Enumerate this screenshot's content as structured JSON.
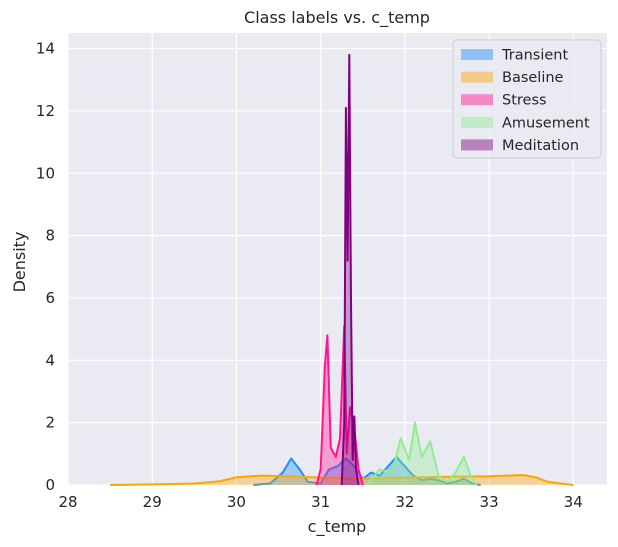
{
  "chart_data": {
    "type": "area",
    "title": "Class labels vs. c_temp",
    "xlabel": "c_temp",
    "ylabel": "Density",
    "xlim": [
      28,
      34.4
    ],
    "ylim": [
      0,
      14.5
    ],
    "xticks": [
      28,
      29,
      30,
      31,
      32,
      33,
      34
    ],
    "yticks": [
      0,
      2,
      4,
      6,
      8,
      10,
      12,
      14
    ],
    "grid": true,
    "legend_position": "top-right",
    "colors": {
      "background": "#eaeaf2",
      "grid": "#ffffff",
      "Transient": "#1e90ff",
      "Baseline": "#ffa500",
      "Stress": "#ff1493",
      "Amusement": "#90ee90",
      "Meditation": "#800080"
    },
    "series": [
      {
        "name": "Transient",
        "x": [
          30.2,
          30.4,
          30.55,
          30.65,
          30.75,
          30.85,
          31.0,
          31.1,
          31.2,
          31.3,
          31.4,
          31.5,
          31.6,
          31.7,
          31.8,
          31.9,
          32.0,
          32.1,
          32.2,
          32.3,
          32.4,
          32.5,
          32.6,
          32.7,
          32.8,
          32.9
        ],
        "y": [
          0.0,
          0.05,
          0.4,
          0.85,
          0.5,
          0.1,
          0.05,
          0.5,
          0.6,
          0.85,
          0.6,
          0.2,
          0.4,
          0.3,
          0.6,
          0.9,
          0.6,
          0.3,
          0.15,
          0.2,
          0.15,
          0.05,
          0.1,
          0.2,
          0.05,
          0.0
        ]
      },
      {
        "name": "Baseline",
        "x": [
          28.5,
          29.0,
          29.5,
          29.8,
          30.0,
          30.3,
          30.6,
          30.9,
          31.2,
          31.5,
          31.8,
          32.2,
          32.6,
          33.0,
          33.2,
          33.4,
          33.55,
          33.7,
          34.0
        ],
        "y": [
          0.0,
          0.02,
          0.05,
          0.12,
          0.25,
          0.3,
          0.28,
          0.25,
          0.22,
          0.2,
          0.22,
          0.25,
          0.27,
          0.28,
          0.3,
          0.32,
          0.25,
          0.1,
          0.0
        ]
      },
      {
        "name": "Stress",
        "x": [
          30.95,
          31.0,
          31.05,
          31.08,
          31.12,
          31.18,
          31.23,
          31.28,
          31.31,
          31.35,
          31.4,
          31.45,
          31.5
        ],
        "y": [
          0.0,
          0.5,
          3.8,
          4.8,
          1.2,
          0.9,
          1.5,
          5.1,
          1.0,
          2.5,
          1.8,
          0.5,
          0.0
        ]
      },
      {
        "name": "Amusement",
        "x": [
          31.55,
          31.7,
          31.85,
          31.95,
          32.05,
          32.12,
          32.2,
          32.3,
          32.4,
          32.5,
          32.6,
          32.7,
          32.78,
          32.85
        ],
        "y": [
          0.0,
          0.5,
          0.4,
          1.5,
          0.8,
          2.0,
          0.9,
          1.4,
          0.3,
          0.1,
          0.4,
          0.9,
          0.3,
          0.0
        ]
      },
      {
        "name": "Meditation",
        "x": [
          31.25,
          31.28,
          31.3,
          31.32,
          31.34,
          31.36,
          31.38,
          31.4,
          31.42,
          31.45
        ],
        "y": [
          0.0,
          2.0,
          12.1,
          7.2,
          13.8,
          6.0,
          0.8,
          2.2,
          0.5,
          0.0
        ]
      }
    ],
    "legend": [
      "Transient",
      "Baseline",
      "Stress",
      "Amusement",
      "Meditation"
    ]
  }
}
